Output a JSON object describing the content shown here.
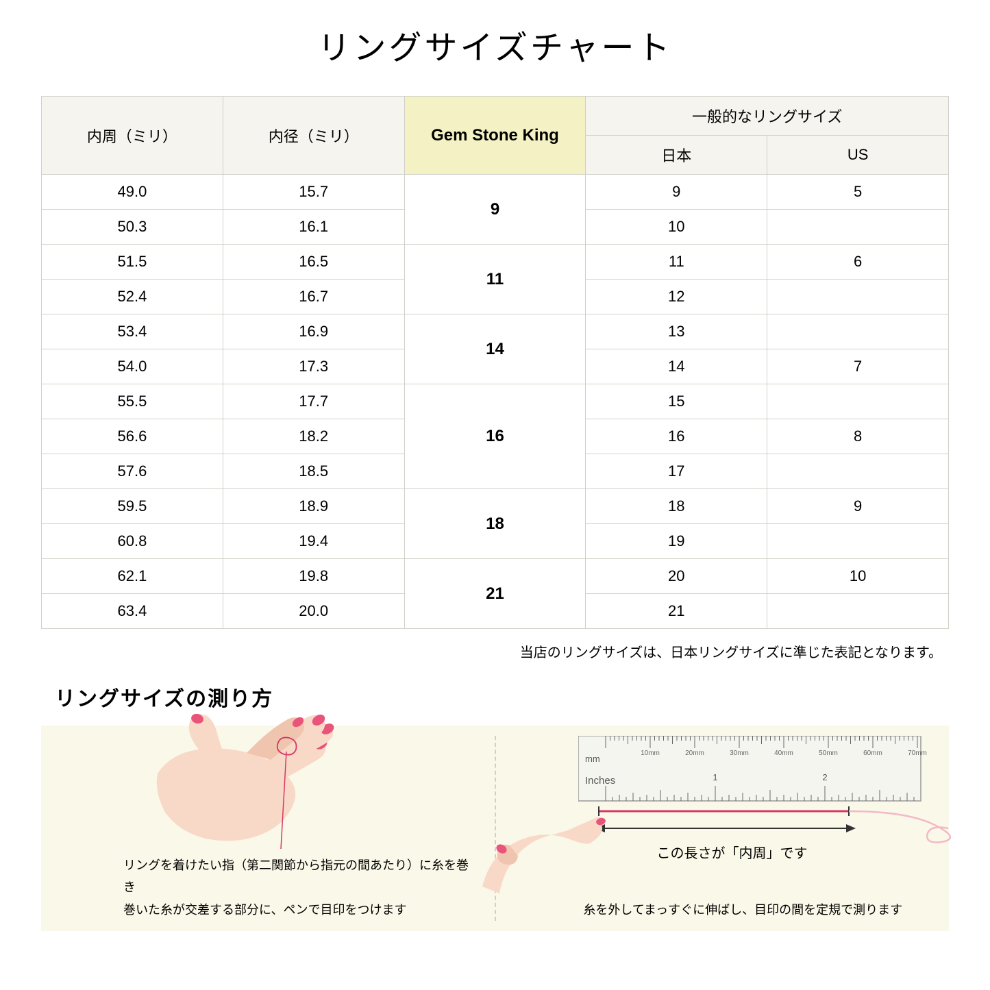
{
  "title": "リングサイズチャート",
  "table": {
    "headers": {
      "col1": "内周（ミリ）",
      "col2": "内径（ミリ）",
      "col3": "Gem Stone King",
      "col4_group": "一般的なリングサイズ",
      "col4a": "日本",
      "col4b": "US"
    },
    "rows": [
      {
        "c1": "49.0",
        "c2": "15.7",
        "gsk": "9",
        "jp": "9",
        "us": "5",
        "gsk_rowspan": 2
      },
      {
        "c1": "50.3",
        "c2": "16.1",
        "jp": "10",
        "us": ""
      },
      {
        "c1": "51.5",
        "c2": "16.5",
        "gsk": "11",
        "jp": "11",
        "us": "6",
        "gsk_rowspan": 2
      },
      {
        "c1": "52.4",
        "c2": "16.7",
        "jp": "12",
        "us": ""
      },
      {
        "c1": "53.4",
        "c2": "16.9",
        "gsk": "14",
        "jp": "13",
        "us": "",
        "gsk_rowspan": 2
      },
      {
        "c1": "54.0",
        "c2": "17.3",
        "jp": "14",
        "us": "7"
      },
      {
        "c1": "55.5",
        "c2": "17.7",
        "gsk": "16",
        "jp": "15",
        "us": "",
        "gsk_rowspan": 3
      },
      {
        "c1": "56.6",
        "c2": "18.2",
        "jp": "16",
        "us": "8"
      },
      {
        "c1": "57.6",
        "c2": "18.5",
        "jp": "17",
        "us": ""
      },
      {
        "c1": "59.5",
        "c2": "18.9",
        "gsk": "18",
        "jp": "18",
        "us": "9",
        "gsk_rowspan": 2
      },
      {
        "c1": "60.8",
        "c2": "19.4",
        "jp": "19",
        "us": ""
      },
      {
        "c1": "62.1",
        "c2": "19.8",
        "gsk": "21",
        "jp": "20",
        "us": "10",
        "gsk_rowspan": 2
      },
      {
        "c1": "63.4",
        "c2": "20.0",
        "jp": "21",
        "us": ""
      }
    ]
  },
  "note": "当店のリングサイズは、日本リングサイズに準じた表記となります。",
  "howto": {
    "title": "リングサイズの測り方",
    "left_caption": "リングを着けたい指（第二関節から指元の間あたり）に糸を巻き\n巻いた糸が交差する部分に、ペンで目印をつけます",
    "right_caption": "糸を外してまっすぐに伸ばし、目印の間を定規で測ります",
    "ruler_labels": {
      "mm": "mm",
      "inches": "Inches",
      "ticks_mm": [
        "10mm",
        "20mm",
        "30mm",
        "40mm",
        "50mm",
        "60mm",
        "70mm"
      ],
      "ticks_in": [
        "1",
        "2"
      ]
    },
    "arrow_label": "この長さが「内周」です"
  },
  "colors": {
    "bg": "#ffffff",
    "header_bg": "#f5f4ef",
    "highlight_bg": "#f4f2c4",
    "howto_bg": "#faf8e8",
    "border": "#d0d0c8",
    "skin": "#f8d9c8",
    "skin_dark": "#f0c5b0",
    "nail": "#e8547a",
    "thread": "#d63864",
    "ruler_body": "#f5f5f0",
    "ruler_tick": "#666666"
  }
}
